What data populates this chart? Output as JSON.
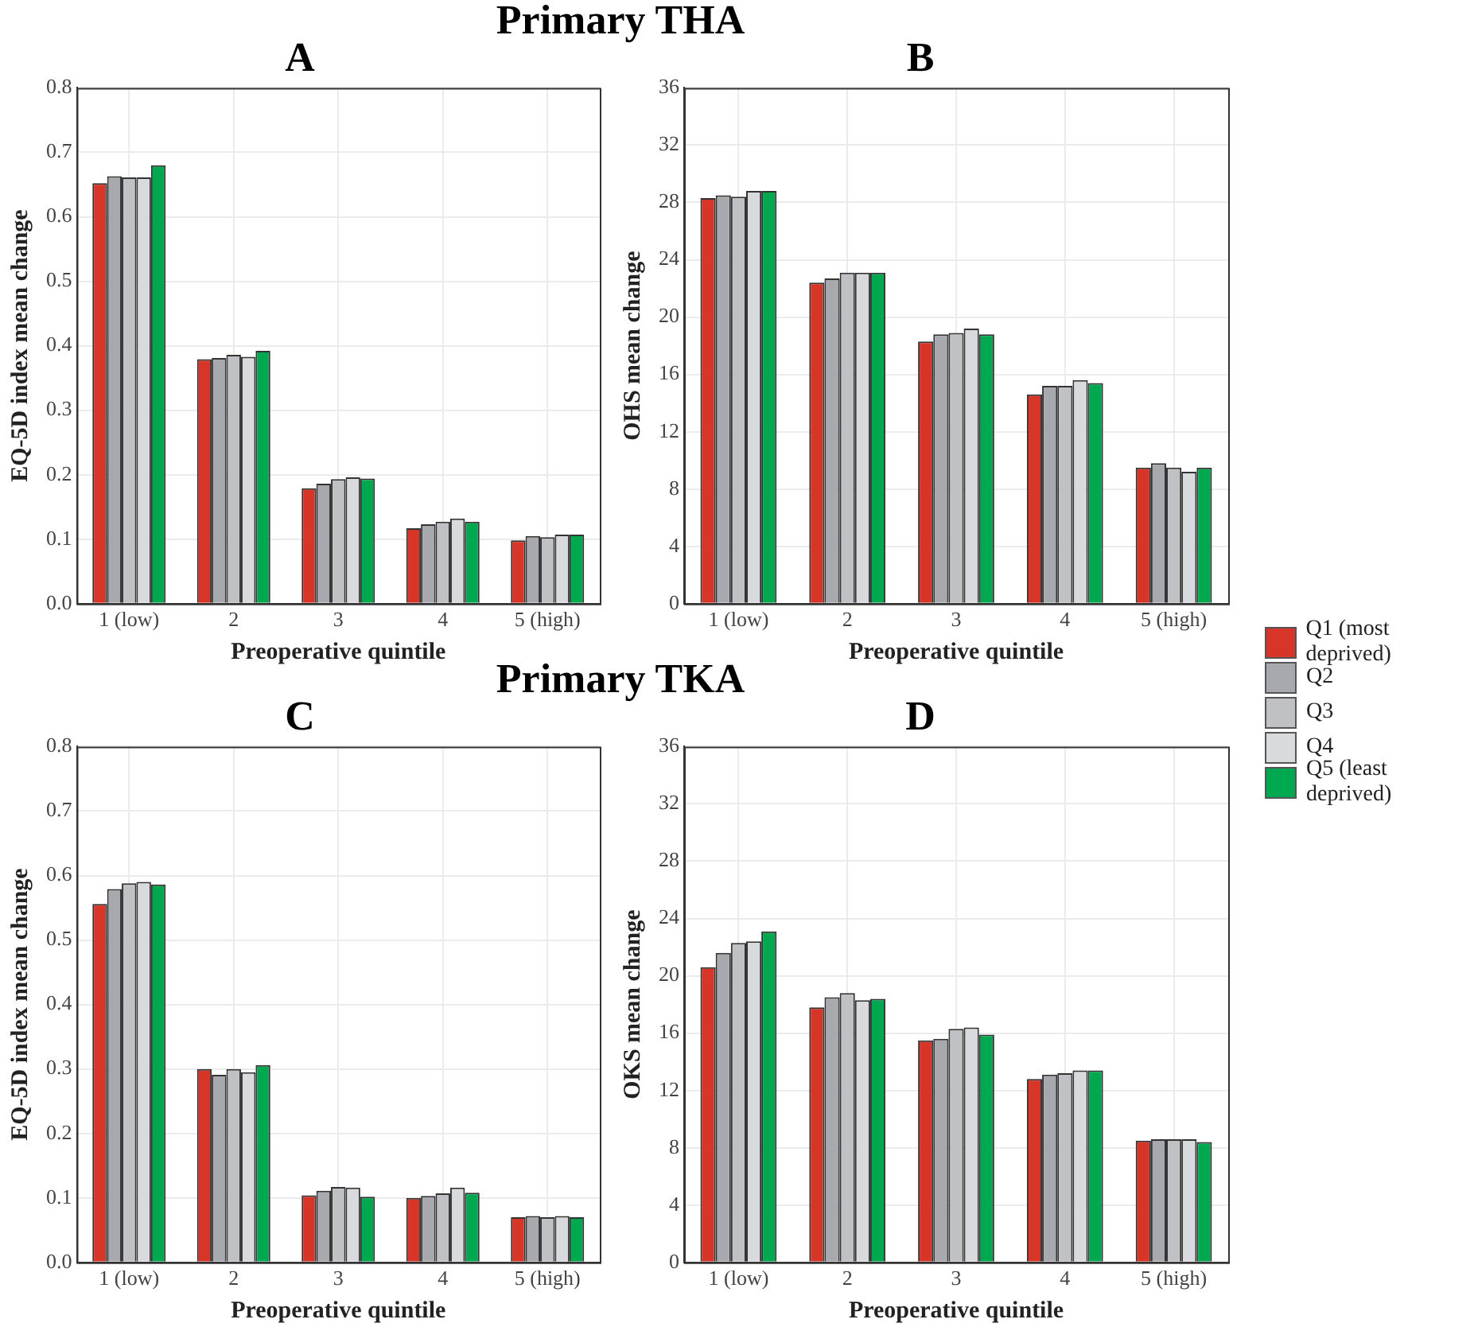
{
  "chart_data": [
    {
      "type": "bar",
      "title": "A",
      "annotations": [
        "Primary THA"
      ],
      "xlabel": "Preoperative quintile",
      "ylabel": "EQ-5D index mean change",
      "categories": [
        "1 (low)",
        "2",
        "3",
        "4",
        "5 (high)"
      ],
      "ylim": [
        0,
        0.8
      ],
      "yticks": [
        {
          "value": 0,
          "label": "0.0"
        },
        0.1,
        0.2,
        0.3,
        0.4,
        0.5,
        0.6,
        0.7,
        0.8
      ],
      "grid": true,
      "legend": false,
      "series": [
        {
          "color": "#d73527",
          "values": [
            0.652,
            0.379,
            0.179,
            0.117,
            0.098
          ]
        },
        {
          "color": "#a7a9ae",
          "values": [
            0.663,
            0.381,
            0.186,
            0.123,
            0.105
          ]
        },
        {
          "color": "#c0c1c5",
          "values": [
            0.661,
            0.386,
            0.193,
            0.127,
            0.103
          ]
        },
        {
          "color": "#d9dadd",
          "values": [
            0.661,
            0.383,
            0.196,
            0.132,
            0.107
          ]
        },
        {
          "color": "#00a84f",
          "values": [
            0.68,
            0.392,
            0.194,
            0.127,
            0.107
          ]
        }
      ]
    },
    {
      "type": "bar",
      "title": "B",
      "xlabel": "Preoperative quintile",
      "ylabel": "OHS mean change",
      "categories": [
        "1 (low)",
        "2",
        "3",
        "4",
        "5 (high)"
      ],
      "ylim": [
        0,
        36
      ],
      "yticks": [
        0,
        4,
        8,
        12,
        16,
        20,
        24,
        28,
        32,
        36
      ],
      "grid": true,
      "legend": "right",
      "series": [
        {
          "name": "Q1 (most deprived)",
          "color": "#d73527",
          "values": [
            28.3,
            22.4,
            18.3,
            14.6,
            9.5
          ]
        },
        {
          "name": "Q2",
          "color": "#a7a9ae",
          "values": [
            28.5,
            22.7,
            18.8,
            15.2,
            9.8
          ]
        },
        {
          "name": "Q3",
          "color": "#c0c1c5",
          "values": [
            28.4,
            23.1,
            18.9,
            15.2,
            9.5
          ]
        },
        {
          "name": "Q4",
          "color": "#d9dadd",
          "values": [
            28.8,
            23.1,
            19.2,
            15.6,
            9.2
          ]
        },
        {
          "name": "Q5 (least deprived)",
          "color": "#00a84f",
          "values": [
            28.8,
            23.1,
            18.8,
            15.4,
            9.5
          ]
        }
      ]
    },
    {
      "type": "bar",
      "title": "C",
      "annotations": [
        "Primary TKA"
      ],
      "xlabel": "Preoperative quintile",
      "ylabel": "EQ-5D index mean change",
      "categories": [
        "1 (low)",
        "2",
        "3",
        "4",
        "5 (high)"
      ],
      "ylim": [
        0,
        0.8
      ],
      "yticks": [
        {
          "value": 0,
          "label": "0.0"
        },
        0.1,
        0.2,
        0.3,
        0.4,
        0.5,
        0.6,
        0.7,
        0.8
      ],
      "grid": true,
      "legend": false,
      "series": [
        {
          "color": "#d73527",
          "values": [
            0.556,
            0.3,
            0.104,
            0.1,
            0.07
          ]
        },
        {
          "color": "#a7a9ae",
          "values": [
            0.579,
            0.291,
            0.111,
            0.103,
            0.072
          ]
        },
        {
          "color": "#c0c1c5",
          "values": [
            0.588,
            0.3,
            0.117,
            0.107,
            0.07
          ]
        },
        {
          "color": "#d9dadd",
          "values": [
            0.59,
            0.295,
            0.116,
            0.116,
            0.072
          ]
        },
        {
          "color": "#00a84f",
          "values": [
            0.586,
            0.306,
            0.102,
            0.108,
            0.07
          ]
        }
      ]
    },
    {
      "type": "bar",
      "title": "D",
      "xlabel": "Preoperative quintile",
      "ylabel": "OKS mean change",
      "categories": [
        "1 (low)",
        "2",
        "3",
        "4",
        "5 (high)"
      ],
      "ylim": [
        0,
        36
      ],
      "yticks": [
        0,
        4,
        8,
        12,
        16,
        20,
        24,
        28,
        32,
        36
      ],
      "grid": true,
      "legend": false,
      "series": [
        {
          "color": "#d73527",
          "values": [
            20.6,
            17.8,
            15.5,
            12.8,
            8.5
          ]
        },
        {
          "color": "#a7a9ae",
          "values": [
            21.6,
            18.5,
            15.6,
            13.1,
            8.6
          ]
        },
        {
          "color": "#c0c1c5",
          "values": [
            22.3,
            18.8,
            16.3,
            13.2,
            8.6
          ]
        },
        {
          "color": "#d9dadd",
          "values": [
            22.4,
            18.3,
            16.4,
            13.4,
            8.6
          ]
        },
        {
          "color": "#00a84f",
          "values": [
            23.1,
            18.4,
            15.9,
            13.4,
            8.4
          ]
        }
      ]
    }
  ]
}
